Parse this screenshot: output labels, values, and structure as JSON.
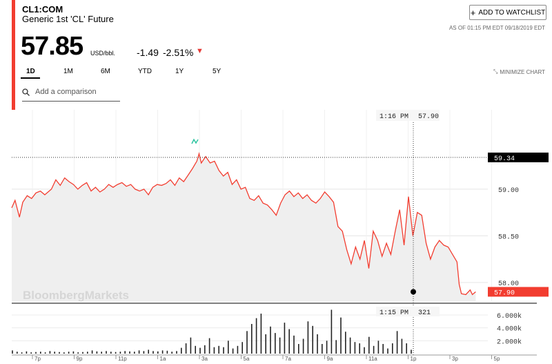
{
  "header": {
    "ticker": "CL1:COM",
    "name": "Generic 1st 'CL' Future",
    "price": "57.85",
    "unit": "USD/bbl.",
    "change": "-1.49",
    "change_pct": "-2.51%",
    "as_of": "AS OF 01:15 PM EDT 09/18/2019 EDT",
    "watchlist_label": "ADD TO WATCHLIST",
    "accent_color": "#f23d30",
    "down_color": "#e53935"
  },
  "tabs": [
    "1D",
    "1M",
    "6M",
    "YTD",
    "1Y",
    "5Y"
  ],
  "active_tab": "1D",
  "minimize_label": "MINIMIZE CHART",
  "comparison_placeholder": "Add a comparison",
  "watermark": "BloombergMarkets",
  "chart_data": [
    {
      "type": "line",
      "y_ticks": [
        58.0,
        58.5,
        59.0
      ],
      "ylim": [
        57.8,
        59.85
      ],
      "x_tick_labels": [
        "7p",
        "9p",
        "11p",
        "1a",
        "3a",
        "5a",
        "7a",
        "9a",
        "11a",
        "1p",
        "3p",
        "5p"
      ],
      "points": [
        [
          0,
          58.8
        ],
        [
          3,
          58.88
        ],
        [
          7,
          58.7
        ],
        [
          10,
          58.86
        ],
        [
          14,
          58.93
        ],
        [
          18,
          58.9
        ],
        [
          22,
          58.96
        ],
        [
          26,
          58.98
        ],
        [
          30,
          58.94
        ],
        [
          36,
          59.0
        ],
        [
          40,
          59.1
        ],
        [
          44,
          59.04
        ],
        [
          48,
          59.12
        ],
        [
          52,
          59.08
        ],
        [
          56,
          59.05
        ],
        [
          60,
          59.0
        ],
        [
          64,
          59.04
        ],
        [
          68,
          59.07
        ],
        [
          72,
          58.98
        ],
        [
          76,
          59.02
        ],
        [
          80,
          58.97
        ],
        [
          84,
          59.0
        ],
        [
          88,
          59.05
        ],
        [
          92,
          59.02
        ],
        [
          96,
          59.05
        ],
        [
          100,
          59.07
        ],
        [
          104,
          59.03
        ],
        [
          108,
          59.05
        ],
        [
          112,
          59.0
        ],
        [
          116,
          58.98
        ],
        [
          120,
          59.0
        ],
        [
          124,
          58.94
        ],
        [
          128,
          59.02
        ],
        [
          132,
          59.05
        ],
        [
          136,
          59.04
        ],
        [
          140,
          59.06
        ],
        [
          144,
          59.1
        ],
        [
          148,
          59.04
        ],
        [
          152,
          59.12
        ],
        [
          156,
          59.08
        ],
        [
          160,
          59.15
        ],
        [
          164,
          59.22
        ],
        [
          168,
          59.3
        ],
        [
          170,
          59.38
        ],
        [
          172,
          59.28
        ],
        [
          176,
          59.35
        ],
        [
          180,
          59.28
        ],
        [
          184,
          59.3
        ],
        [
          188,
          59.2
        ],
        [
          192,
          59.14
        ],
        [
          196,
          59.18
        ],
        [
          200,
          59.05
        ],
        [
          204,
          59.1
        ],
        [
          208,
          59.0
        ],
        [
          212,
          59.02
        ],
        [
          216,
          58.9
        ],
        [
          220,
          58.88
        ],
        [
          224,
          58.93
        ],
        [
          228,
          58.85
        ],
        [
          232,
          58.83
        ],
        [
          236,
          58.78
        ],
        [
          240,
          58.72
        ],
        [
          244,
          58.85
        ],
        [
          248,
          58.94
        ],
        [
          252,
          58.98
        ],
        [
          256,
          58.92
        ],
        [
          260,
          58.96
        ],
        [
          264,
          58.9
        ],
        [
          268,
          58.94
        ],
        [
          272,
          58.88
        ],
        [
          276,
          58.85
        ],
        [
          280,
          58.9
        ],
        [
          284,
          58.97
        ],
        [
          288,
          58.92
        ],
        [
          292,
          58.86
        ],
        [
          296,
          58.6
        ],
        [
          300,
          58.55
        ],
        [
          304,
          58.35
        ],
        [
          308,
          58.2
        ],
        [
          312,
          58.38
        ],
        [
          316,
          58.25
        ],
        [
          320,
          58.45
        ],
        [
          324,
          58.15
        ],
        [
          328,
          58.55
        ],
        [
          332,
          58.45
        ],
        [
          336,
          58.28
        ],
        [
          340,
          58.42
        ],
        [
          344,
          58.3
        ],
        [
          348,
          58.55
        ],
        [
          352,
          58.78
        ],
        [
          356,
          58.4
        ],
        [
          360,
          58.92
        ],
        [
          364,
          58.5
        ],
        [
          368,
          58.75
        ],
        [
          372,
          58.72
        ],
        [
          376,
          58.42
        ],
        [
          380,
          58.25
        ],
        [
          384,
          58.38
        ],
        [
          388,
          58.45
        ],
        [
          392,
          58.4
        ],
        [
          396,
          58.38
        ],
        [
          400,
          58.3
        ],
        [
          404,
          58.22
        ],
        [
          406,
          57.98
        ],
        [
          408,
          57.88
        ],
        [
          412,
          57.87
        ],
        [
          416,
          57.92
        ],
        [
          418,
          57.87
        ],
        [
          421,
          57.9
        ]
      ],
      "last_price_label": "57.90",
      "ref_line_label": "59.34",
      "crosshair_time": "1:16 PM",
      "crosshair_value": "57.90",
      "line_color": "#f23d30"
    },
    {
      "type": "bar",
      "y_ticks": [
        2000,
        4000,
        6000
      ],
      "y_tick_labels": [
        "2.000k",
        "4.000k",
        "6.000k"
      ],
      "ylim": [
        0,
        7600
      ],
      "values": [
        500,
        300,
        200,
        350,
        200,
        250,
        300,
        200,
        400,
        300,
        250,
        200,
        300,
        350,
        200,
        250,
        300,
        500,
        350,
        300,
        400,
        300,
        250,
        300,
        400,
        350,
        300,
        500,
        400,
        600,
        400,
        350,
        500,
        450,
        300,
        400,
        900,
        1600,
        2500,
        1200,
        900,
        1300,
        2400,
        1000,
        1200,
        1000,
        2000,
        800,
        1200,
        1800,
        3500,
        4600,
        5500,
        6200,
        3000,
        4200,
        3200,
        2500,
        4800,
        3800,
        2800,
        1500,
        2300,
        5000,
        4300,
        3000,
        1500,
        2000,
        6800,
        2100,
        5600,
        3400,
        2500,
        1800,
        1600,
        1000,
        2600,
        1200,
        2000,
        1500,
        800,
        1600,
        3500,
        2300,
        1600,
        600
      ],
      "crosshair_time": "1:15 PM",
      "crosshair_value": "321"
    }
  ]
}
